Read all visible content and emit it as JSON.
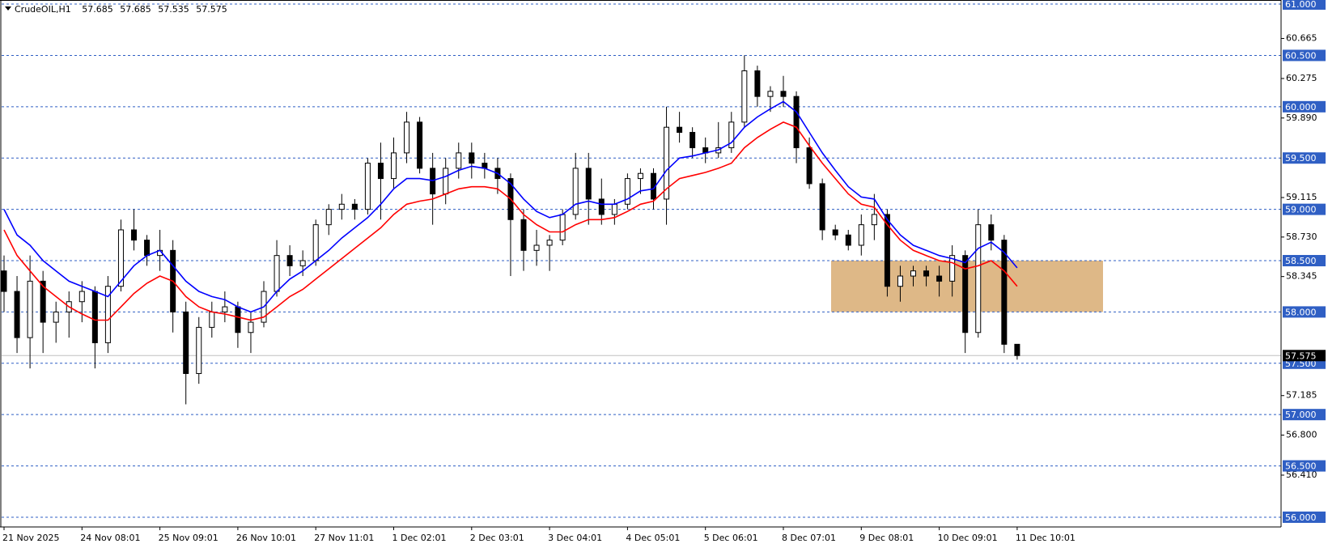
{
  "chart_data": {
    "type": "candlestick",
    "title": "CrudeOIL,H1",
    "categories": [
      "21 Nov 2025",
      null,
      null,
      null,
      null,
      null,
      "24 Nov 08:01",
      null,
      null,
      null,
      null,
      null,
      "25 Nov 09:01",
      null,
      null,
      null,
      null,
      null,
      "26 Nov 10:01",
      null,
      null,
      null,
      null,
      null,
      "27 Nov 11:01",
      null,
      null,
      null,
      null,
      null,
      "1 Dec 02:01",
      null,
      null,
      null,
      null,
      null,
      "2 Dec 03:01",
      null,
      null,
      null,
      null,
      null,
      "3 Dec 04:01",
      null,
      null,
      null,
      null,
      null,
      "4 Dec 05:01",
      null,
      null,
      null,
      null,
      null,
      "5 Dec 06:01",
      null,
      null,
      null,
      null,
      null,
      "8 Dec 07:01",
      null,
      null,
      null,
      null,
      null,
      "9 Dec 08:01",
      null,
      null,
      null,
      null,
      null,
      "10 Dec 09:01",
      null,
      null,
      null,
      null,
      null,
      "11 Dec 10:01"
    ],
    "open": [
      58.4,
      58.2,
      57.75,
      58.3,
      57.9,
      58.0,
      58.1,
      58.2,
      57.7,
      58.25,
      58.8,
      58.7,
      58.55,
      58.6,
      58.0,
      57.4,
      57.85,
      58.0,
      58.05,
      57.8,
      57.9,
      58.2,
      58.55,
      58.45,
      58.5,
      58.85,
      59.0,
      59.05,
      59.0,
      59.45,
      59.3,
      59.55,
      59.85,
      59.4,
      59.15,
      59.4,
      59.55,
      59.45,
      59.4,
      59.3,
      58.9,
      58.6,
      58.65,
      58.7,
      58.95,
      59.4,
      59.1,
      58.95,
      59.05,
      59.3,
      59.35,
      59.1,
      59.8,
      59.75,
      59.6,
      59.55,
      59.6,
      59.85,
      60.35,
      60.1,
      60.15,
      60.1,
      59.6,
      59.25,
      58.8,
      58.75,
      58.65,
      58.85,
      58.95,
      58.25,
      58.35,
      58.4,
      58.35,
      58.3,
      58.55,
      57.8,
      58.85,
      58.7,
      57.685
    ],
    "high": [
      58.55,
      58.35,
      58.55,
      58.4,
      58.1,
      58.2,
      58.3,
      58.25,
      58.35,
      58.9,
      59.0,
      58.75,
      58.8,
      58.7,
      58.1,
      57.95,
      58.1,
      58.2,
      58.1,
      58.0,
      58.3,
      58.7,
      58.65,
      58.6,
      58.9,
      59.05,
      59.15,
      59.1,
      59.5,
      59.65,
      59.7,
      59.95,
      59.9,
      59.55,
      59.5,
      59.65,
      59.65,
      59.55,
      59.5,
      59.35,
      59.0,
      58.8,
      58.75,
      59.0,
      59.55,
      59.55,
      59.3,
      59.1,
      59.35,
      59.4,
      59.4,
      60.0,
      59.95,
      59.8,
      59.7,
      59.85,
      59.95,
      60.5,
      60.4,
      60.2,
      60.3,
      60.15,
      59.7,
      59.3,
      58.85,
      58.8,
      58.95,
      59.15,
      59.0,
      58.45,
      58.45,
      58.45,
      58.45,
      58.65,
      58.6,
      59.0,
      58.95,
      58.75,
      57.685
    ],
    "low": [
      58.0,
      57.6,
      57.45,
      57.6,
      57.7,
      57.75,
      57.9,
      57.45,
      57.6,
      58.2,
      58.6,
      58.45,
      58.4,
      57.8,
      57.1,
      57.3,
      57.75,
      57.9,
      57.65,
      57.6,
      57.85,
      58.15,
      58.35,
      58.35,
      58.45,
      58.75,
      58.9,
      58.9,
      58.95,
      58.9,
      59.2,
      59.45,
      59.35,
      58.85,
      59.05,
      59.3,
      59.3,
      59.3,
      59.15,
      58.35,
      58.4,
      58.45,
      58.4,
      58.65,
      58.9,
      58.85,
      58.85,
      58.85,
      59.0,
      59.15,
      59.0,
      58.85,
      59.65,
      59.5,
      59.45,
      59.5,
      59.55,
      59.8,
      60.0,
      59.95,
      60.0,
      59.45,
      59.2,
      58.7,
      58.7,
      58.6,
      58.55,
      58.7,
      58.15,
      58.1,
      58.25,
      58.25,
      58.15,
      58.15,
      57.6,
      57.75,
      58.6,
      57.6,
      57.535
    ],
    "close": [
      58.2,
      57.75,
      58.3,
      57.9,
      58.0,
      58.1,
      58.2,
      57.7,
      58.25,
      58.8,
      58.7,
      58.55,
      58.6,
      58.0,
      57.4,
      57.85,
      58.0,
      58.05,
      57.8,
      57.9,
      58.2,
      58.55,
      58.45,
      58.5,
      58.85,
      59.0,
      59.05,
      59.0,
      59.45,
      59.3,
      59.55,
      59.85,
      59.4,
      59.15,
      59.4,
      59.55,
      59.45,
      59.4,
      59.3,
      58.9,
      58.6,
      58.65,
      58.7,
      58.95,
      59.4,
      59.1,
      58.95,
      59.05,
      59.3,
      59.35,
      59.1,
      59.8,
      59.75,
      59.6,
      59.55,
      59.6,
      59.85,
      60.35,
      60.1,
      60.15,
      60.1,
      59.6,
      59.25,
      58.8,
      58.75,
      58.65,
      58.85,
      58.95,
      58.25,
      58.35,
      58.4,
      58.35,
      58.3,
      58.55,
      57.8,
      58.85,
      58.7,
      57.685,
      57.575
    ],
    "series": [
      {
        "color": "#0000ff",
        "values": [
          59.0,
          58.75,
          58.65,
          58.5,
          58.4,
          58.3,
          58.25,
          58.2,
          58.15,
          58.3,
          58.45,
          58.55,
          58.6,
          58.45,
          58.3,
          58.2,
          58.15,
          58.12,
          58.05,
          58.0,
          58.05,
          58.2,
          58.32,
          58.4,
          58.5,
          58.6,
          58.72,
          58.82,
          58.92,
          59.05,
          59.2,
          59.3,
          59.3,
          59.28,
          59.32,
          59.38,
          59.42,
          59.4,
          59.35,
          59.25,
          59.1,
          58.98,
          58.92,
          58.95,
          59.05,
          59.08,
          59.05,
          59.05,
          59.1,
          59.18,
          59.2,
          59.38,
          59.5,
          59.52,
          59.55,
          59.58,
          59.65,
          59.8,
          59.9,
          59.98,
          60.05,
          59.95,
          59.75,
          59.55,
          59.38,
          59.22,
          59.12,
          59.1,
          58.9,
          58.75,
          58.65,
          58.6,
          58.55,
          58.52,
          58.48,
          58.62,
          58.68,
          58.58,
          58.43
        ]
      },
      {
        "color": "#ff0000",
        "values": [
          58.8,
          58.55,
          58.4,
          58.25,
          58.15,
          58.05,
          57.98,
          57.92,
          57.92,
          58.05,
          58.18,
          58.28,
          58.35,
          58.3,
          58.15,
          58.05,
          58.0,
          57.98,
          57.95,
          57.92,
          57.95,
          58.05,
          58.15,
          58.22,
          58.32,
          58.42,
          58.52,
          58.62,
          58.72,
          58.82,
          58.95,
          59.05,
          59.08,
          59.1,
          59.15,
          59.2,
          59.22,
          59.22,
          59.2,
          59.1,
          58.95,
          58.85,
          58.78,
          58.78,
          58.85,
          58.9,
          58.9,
          58.92,
          58.98,
          59.05,
          59.08,
          59.2,
          59.3,
          59.33,
          59.36,
          59.4,
          59.45,
          59.6,
          59.7,
          59.78,
          59.85,
          59.8,
          59.62,
          59.45,
          59.3,
          59.15,
          59.05,
          59.02,
          58.85,
          58.7,
          58.6,
          58.55,
          58.5,
          58.48,
          58.42,
          58.45,
          58.5,
          58.4,
          58.25
        ]
      }
    ],
    "ylim": [
      55.905,
      61.032
    ],
    "yticks": [
      60.665,
      60.275,
      {
        "value": 59.89,
        "label": "59.890"
      },
      59.115,
      {
        "value": 58.73,
        "label": "58.730"
      },
      58.345,
      57.185,
      {
        "value": 56.8,
        "label": "56.800"
      },
      {
        "value": 56.41,
        "label": "56.410"
      }
    ],
    "levels": {
      "color": "#2f5fc4",
      "values": [
        {
          "value": 61,
          "label": "61.000"
        },
        {
          "value": 60.5,
          "label": "60.500"
        },
        {
          "value": 60,
          "label": "60.000"
        },
        {
          "value": 59.5,
          "label": "59.500"
        },
        {
          "value": 59,
          "label": "59.000"
        },
        {
          "value": 58.5,
          "label": "58.500"
        },
        {
          "value": 58,
          "label": "58.000"
        },
        {
          "value": 57.5,
          "label": "57.500"
        },
        {
          "value": 57,
          "label": "57.000"
        },
        {
          "value": 56.5,
          "label": "56.500"
        },
        {
          "value": 56,
          "label": "56.000"
        }
      ]
    },
    "zone": {
      "low": 58,
      "high": 58.5,
      "color": "#deb887"
    }
  }
}
